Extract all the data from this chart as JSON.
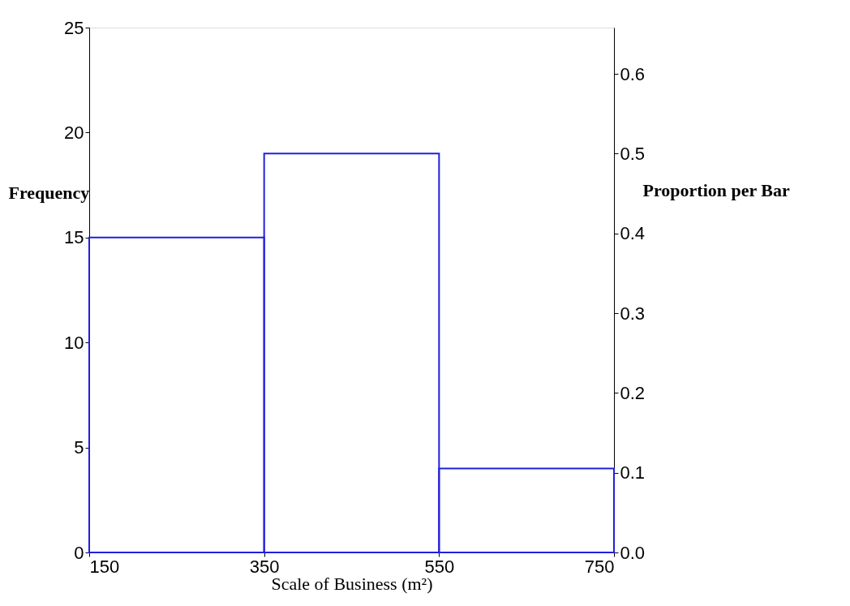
{
  "chart_data": {
    "type": "histogram",
    "xlabel": "Scale of Business (m²)",
    "ylabel": "Frequency",
    "y2label": "Proportion per Bar",
    "bins": [
      150,
      350,
      550,
      750
    ],
    "values": [
      15,
      19,
      4
    ],
    "color": "#2020dd",
    "xlim": [
      150,
      750
    ],
    "xticks": [
      150,
      350,
      550,
      750
    ],
    "ylim": [
      0,
      25
    ],
    "yticks": [
      0,
      5,
      10,
      15,
      20,
      25
    ],
    "y2lim": [
      0,
      0.658
    ],
    "y2ticks": [
      {
        "value": 0,
        "label": "0.0"
      },
      0.1,
      0.2,
      0.3,
      0.4,
      0.5,
      0.6
    ],
    "grid": false
  }
}
